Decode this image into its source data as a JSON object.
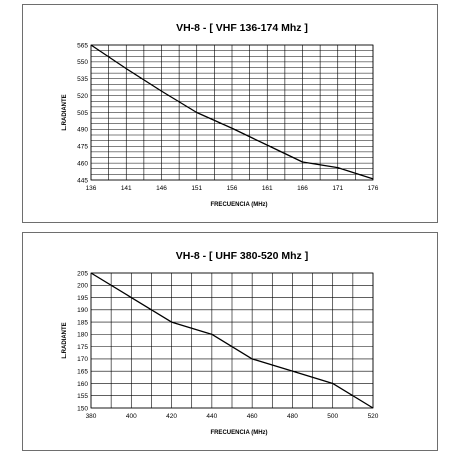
{
  "chart_data": [
    {
      "type": "line",
      "title": "VH-8  -  [ VHF  136-174 Mhz ]",
      "xlabel": "FRECUENCIA  (MHz)",
      "ylabel": "L.RADIANTE",
      "xlim": [
        136,
        176
      ],
      "ylim": [
        445,
        565
      ],
      "x_ticks": [
        136,
        141,
        146,
        151,
        156,
        161,
        166,
        171,
        176
      ],
      "y_ticks": [
        445,
        460,
        475,
        490,
        505,
        520,
        535,
        550,
        565
      ],
      "x_grid_step": 2.5,
      "y_grid_step": 5,
      "grid": true,
      "x": [
        136,
        141,
        146,
        151,
        156,
        161,
        166,
        171,
        176
      ],
      "y": [
        565,
        544,
        524,
        505,
        491,
        476,
        461,
        456,
        446
      ]
    },
    {
      "type": "line",
      "title": "VH-8  -  [ UHF  380-520 Mhz ]",
      "xlabel": "FRECUENCIA  (MHz)",
      "ylabel": "L.RADIANTE",
      "xlim": [
        380,
        520
      ],
      "ylim": [
        150,
        205
      ],
      "x_ticks": [
        380,
        400,
        420,
        440,
        460,
        480,
        500,
        520
      ],
      "y_ticks": [
        150,
        155,
        160,
        165,
        170,
        175,
        180,
        185,
        190,
        195,
        200,
        205
      ],
      "x_grid_step": 10,
      "y_grid_step": 5,
      "grid": true,
      "x": [
        380,
        400,
        420,
        440,
        460,
        480,
        500,
        520
      ],
      "y": [
        205,
        195,
        185,
        180,
        170,
        165,
        160,
        150
      ]
    }
  ]
}
